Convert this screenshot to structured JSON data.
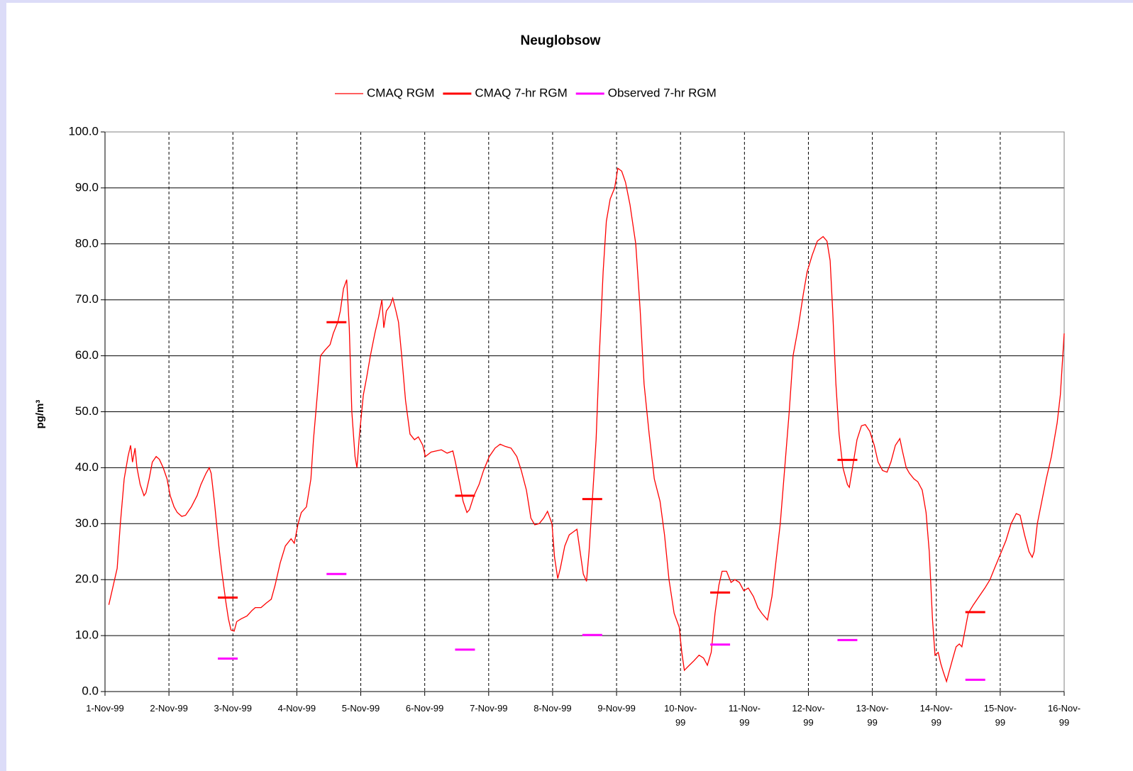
{
  "chart_data": {
    "type": "line",
    "title": "Neuglobsow",
    "ylabel": "pg/m³",
    "xlim": [
      0,
      15
    ],
    "ylim": [
      0,
      100
    ],
    "xticks": [
      {
        "value": 0,
        "label": "1-Nov-99"
      },
      {
        "value": 1,
        "label": "2-Nov-99"
      },
      {
        "value": 2,
        "label": "3-Nov-99"
      },
      {
        "value": 3,
        "label": "4-Nov-99"
      },
      {
        "value": 4,
        "label": "5-Nov-99"
      },
      {
        "value": 5,
        "label": "6-Nov-99"
      },
      {
        "value": 6,
        "label": "7-Nov-99"
      },
      {
        "value": 7,
        "label": "8-Nov-99"
      },
      {
        "value": 8,
        "label": "9-Nov-99"
      },
      {
        "value": 9,
        "label": "10-Nov-\n99"
      },
      {
        "value": 10,
        "label": "11-Nov-\n99"
      },
      {
        "value": 11,
        "label": "12-Nov-\n99"
      },
      {
        "value": 12,
        "label": "13-Nov-\n99"
      },
      {
        "value": 13,
        "label": "14-Nov-\n99"
      },
      {
        "value": 14,
        "label": "15-Nov-\n99"
      },
      {
        "value": 15,
        "label": "16-Nov-\n99"
      }
    ],
    "yticks": [
      {
        "value": 0,
        "label": "0.0"
      },
      {
        "value": 10,
        "label": "10.0"
      },
      {
        "value": 20,
        "label": "20.0"
      },
      {
        "value": 30,
        "label": "30.0"
      },
      {
        "value": 40,
        "label": "40.0"
      },
      {
        "value": 50,
        "label": "50.0"
      },
      {
        "value": 60,
        "label": "60.0"
      },
      {
        "value": 70,
        "label": "70.0"
      },
      {
        "value": 80,
        "label": "80.0"
      },
      {
        "value": 90,
        "label": "90.0"
      },
      {
        "value": 100,
        "label": "100.0"
      }
    ],
    "grid": true,
    "legend": "top",
    "series": [
      {
        "name": "CMAQ RGM",
        "color": "#ff0000",
        "marker": "line",
        "x": [
          0.06,
          0.13,
          0.19,
          0.24,
          0.3,
          0.36,
          0.4,
          0.43,
          0.47,
          0.5,
          0.55,
          0.61,
          0.64,
          0.69,
          0.74,
          0.8,
          0.85,
          0.91,
          0.97,
          1.02,
          1.08,
          1.13,
          1.2,
          1.26,
          1.35,
          1.44,
          1.5,
          1.58,
          1.63,
          1.66,
          1.71,
          1.78,
          1.82,
          1.89,
          1.93,
          1.97,
          2.02,
          2.06,
          2.13,
          2.22,
          2.3,
          2.35,
          2.44,
          2.52,
          2.6,
          2.66,
          2.74,
          2.82,
          2.91,
          2.96,
          3.02,
          3.07,
          3.15,
          3.22,
          3.26,
          3.32,
          3.37,
          3.44,
          3.52,
          3.57,
          3.64,
          3.68,
          3.73,
          3.78,
          3.82,
          3.86,
          3.91,
          3.94,
          3.98,
          4.04,
          4.09,
          4.15,
          4.22,
          4.28,
          4.33,
          4.36,
          4.4,
          4.46,
          4.5,
          4.55,
          4.59,
          4.64,
          4.7,
          4.77,
          4.84,
          4.9,
          4.97,
          5.01,
          5.1,
          5.18,
          5.26,
          5.35,
          5.44,
          5.48,
          5.55,
          5.6,
          5.66,
          5.7,
          5.77,
          5.85,
          5.92,
          6.01,
          6.1,
          6.18,
          6.26,
          6.35,
          6.44,
          6.51,
          6.59,
          6.66,
          6.72,
          6.79,
          6.86,
          6.92,
          6.99,
          7.03,
          7.08,
          7.12,
          7.19,
          7.26,
          7.32,
          7.38,
          7.43,
          7.48,
          7.53,
          7.57,
          7.62,
          7.68,
          7.73,
          7.79,
          7.84,
          7.9,
          7.97,
          8.02,
          8.08,
          8.14,
          8.21,
          8.3,
          8.37,
          8.43,
          8.51,
          8.59,
          8.68,
          8.75,
          8.82,
          8.9,
          8.98,
          9.02,
          9.06,
          9.12,
          9.21,
          9.29,
          9.36,
          9.42,
          9.48,
          9.54,
          9.6,
          9.65,
          9.72,
          9.79,
          9.85,
          9.92,
          9.99,
          10.06,
          10.14,
          10.21,
          10.27,
          10.36,
          10.43,
          10.5,
          10.56,
          10.63,
          10.7,
          10.76,
          10.84,
          10.92,
          10.98,
          11.06,
          11.14,
          11.23,
          11.29,
          11.34,
          11.38,
          11.43,
          11.48,
          11.54,
          11.61,
          11.64,
          11.69,
          11.76,
          11.83,
          11.89,
          11.96,
          12.03,
          12.09,
          12.16,
          12.23,
          12.29,
          12.36,
          12.43,
          12.47,
          12.53,
          12.58,
          12.65,
          12.71,
          12.78,
          12.84,
          12.89,
          12.94,
          12.98,
          13.03,
          13.07,
          13.11,
          13.16,
          13.2,
          13.26,
          13.31,
          13.36,
          13.4,
          13.45,
          13.5,
          13.58,
          13.67,
          13.76,
          13.84,
          13.91,
          14.0,
          14.09,
          14.17,
          14.25,
          14.31,
          14.38,
          14.45,
          14.5,
          14.53,
          14.58,
          14.65,
          14.72,
          14.8,
          14.89,
          14.94,
          15.0
        ],
        "values": [
          15.5,
          19,
          22,
          30,
          38,
          42,
          44,
          41,
          43.5,
          40,
          37,
          35,
          35.5,
          38,
          41,
          42,
          41.5,
          40,
          38,
          35,
          33,
          32,
          31.3,
          31.5,
          33,
          35,
          37,
          39,
          40,
          39,
          34,
          26,
          22,
          16,
          13,
          11,
          10.8,
          12.5,
          13,
          13.5,
          14.5,
          15,
          15,
          15.8,
          16.5,
          19,
          23,
          26,
          27.3,
          26.5,
          30,
          32,
          33,
          38,
          45,
          53,
          60,
          61,
          62,
          64,
          66,
          68,
          72,
          73.6,
          65,
          50,
          42,
          40,
          46,
          53,
          56,
          60,
          64,
          67,
          70,
          65,
          68,
          69,
          70.3,
          68,
          66,
          60,
          52,
          46,
          45,
          45.5,
          44,
          42,
          42.8,
          43,
          43.2,
          42.6,
          43,
          41,
          37,
          34,
          32,
          32.5,
          35,
          37,
          39.5,
          42,
          43.5,
          44.2,
          43.8,
          43.5,
          42,
          39.5,
          36,
          31,
          29.8,
          30,
          31,
          32.2,
          30,
          24,
          20.2,
          22,
          26,
          28,
          28.5,
          29,
          25,
          21,
          19.7,
          25,
          34,
          45,
          60,
          75,
          84,
          88,
          90,
          93.5,
          93,
          91,
          87,
          80,
          68,
          55,
          46,
          38,
          34,
          28,
          20,
          14,
          11.5,
          7,
          3.8,
          4.5,
          5.5,
          6.5,
          6,
          4.7,
          7,
          14,
          19,
          21.5,
          21.5,
          19.5,
          20,
          19.5,
          18,
          18.5,
          17,
          15,
          14,
          12.8,
          17,
          24,
          30,
          40,
          50,
          60,
          65,
          71,
          75,
          78,
          80.5,
          81.3,
          80.5,
          77,
          68,
          55,
          46,
          40,
          37,
          36.5,
          40,
          45,
          47.5,
          47.7,
          46.5,
          44,
          41,
          39.5,
          39.2,
          41,
          44,
          45.2,
          43,
          40,
          39,
          38,
          37.5,
          36,
          32,
          25,
          13,
          6.5,
          7,
          5,
          3.5,
          1.8,
          3.5,
          6,
          8,
          8.5,
          8,
          11,
          14,
          15.5,
          17,
          18.5,
          20,
          22,
          24.5,
          27,
          30,
          31.8,
          31.5,
          28,
          25,
          24,
          25,
          30,
          34,
          38,
          42,
          48,
          53,
          64
        ]
      },
      {
        "name": "CMAQ 7-hr RGM",
        "color": "#ff0000",
        "marker": "dash",
        "x": [
          1.92,
          3.62,
          5.63,
          7.62,
          9.62,
          11.61,
          13.61
        ],
        "values": [
          16.8,
          66,
          35,
          34.4,
          17.7,
          41.4,
          14.2
        ]
      },
      {
        "name": "Observed 7-hr RGM",
        "color": "#ff00ff",
        "marker": "dash",
        "x": [
          1.92,
          3.62,
          5.63,
          7.62,
          9.62,
          11.61,
          13.61
        ],
        "values": [
          5.9,
          21,
          7.5,
          10.1,
          8.4,
          9.2,
          2.1
        ]
      }
    ]
  }
}
